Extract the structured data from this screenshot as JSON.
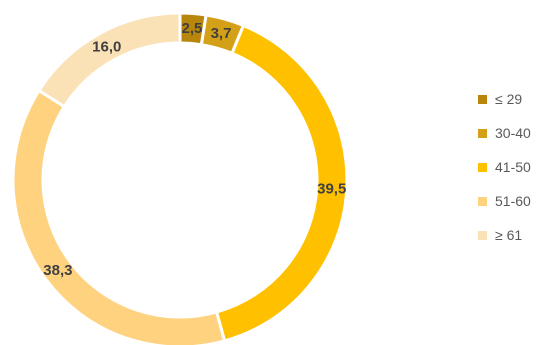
{
  "chart_data": {
    "type": "pie",
    "donut": true,
    "categories": [
      "≤ 29",
      "30-40",
      "41-50",
      "51-60",
      "≥ 61"
    ],
    "values": [
      2.5,
      3.7,
      39.5,
      38.3,
      16.0
    ],
    "value_labels": [
      "2,5",
      "3,7",
      "39,5",
      "38,3",
      "16,0"
    ],
    "colors": [
      "#b8860b",
      "#d4a017",
      "#ffc000",
      "#ffd27f",
      "#fbe1b6"
    ],
    "start_angle": "top",
    "direction": "clockwise",
    "legend_position": "right",
    "title": ""
  }
}
